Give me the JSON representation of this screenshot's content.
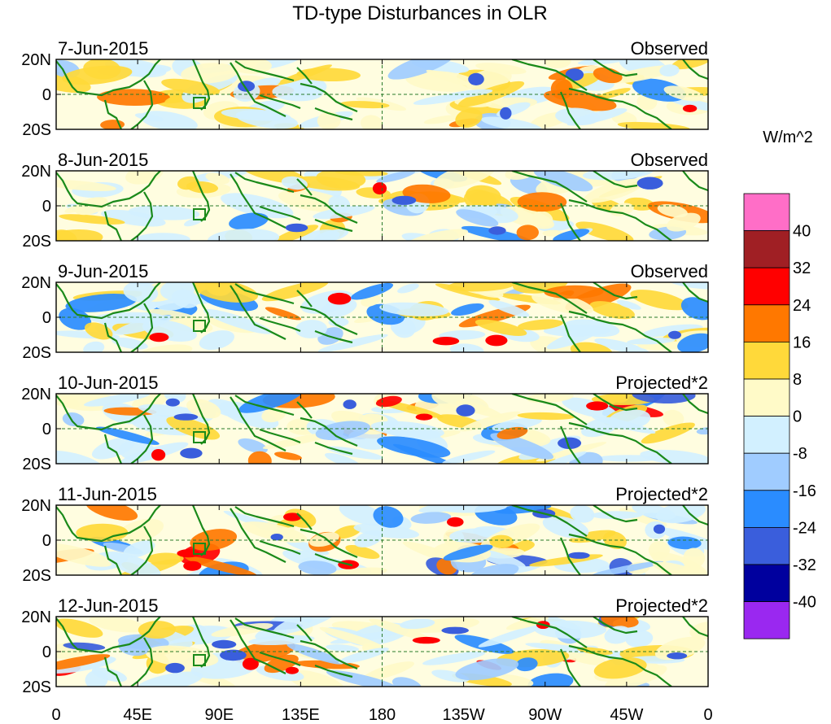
{
  "title": "TD-type Disturbances in OLR",
  "panels": [
    {
      "date": "7-Jun-2015",
      "label": "Observed"
    },
    {
      "date": "8-Jun-2015",
      "label": "Observed"
    },
    {
      "date": "9-Jun-2015",
      "label": "Observed"
    },
    {
      "date": "10-Jun-2015",
      "label": "Projected*2"
    },
    {
      "date": "11-Jun-2015",
      "label": "Projected*2"
    },
    {
      "date": "12-Jun-2015",
      "label": "Projected*2"
    }
  ],
  "lat_ticks": [
    "20N",
    "0",
    "20S"
  ],
  "lon_ticks": [
    "0",
    "45E",
    "90E",
    "135E",
    "180",
    "135W",
    "90W",
    "45W",
    "0"
  ],
  "colorbar": {
    "units": "W/m^2",
    "labels": [
      "40",
      "32",
      "24",
      "16",
      "8",
      "0",
      "-8",
      "-16",
      "-24",
      "-32",
      "-40"
    ],
    "colors": [
      "#ff6ec7",
      "#a01f24",
      "#ff0000",
      "#ff7800",
      "#ffd93a",
      "#fffac8",
      "#d2f0ff",
      "#a0ccff",
      "#2a8cff",
      "#3a5edc",
      "#00009e",
      "#9a28f0"
    ]
  },
  "colors": {
    "coast": "#1a8a1a",
    "grid": "#1a8a1a",
    "frame": "#000000"
  }
}
